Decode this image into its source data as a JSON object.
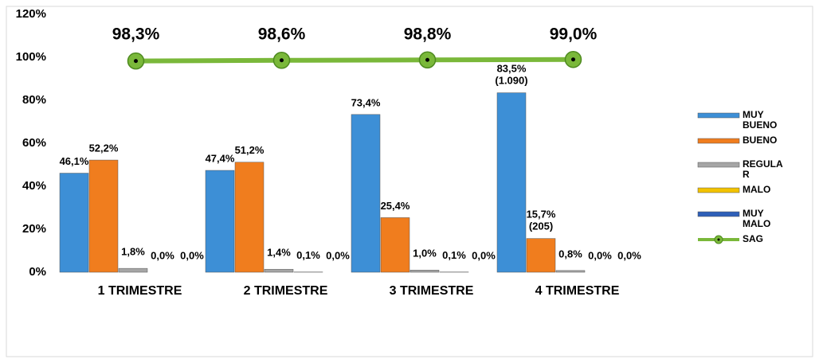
{
  "chart_data": {
    "type": "bar",
    "categories": [
      "1 TRIMESTRE",
      "2 TRIMESTRE",
      "3 TRIMESTRE",
      "4 TRIMESTRE"
    ],
    "series": [
      {
        "name": "MUY BUENO",
        "color": "#3d8fd6",
        "values": [
          46.1,
          47.4,
          73.4,
          83.5
        ],
        "value_labels": [
          "46,1%",
          "47,4%",
          "73,4%",
          "83,5%\n(1.090)"
        ]
      },
      {
        "name": "BUENO",
        "color": "#f07d1e",
        "values": [
          52.2,
          51.2,
          25.4,
          15.7
        ],
        "value_labels": [
          "52,2%",
          "51,2%",
          "25,4%",
          "15,7%\n(205)"
        ]
      },
      {
        "name": "REGULAR",
        "color": "#a6a6a6",
        "values": [
          1.8,
          1.4,
          1.0,
          0.8
        ],
        "value_labels": [
          "1,8%",
          "1,4%",
          "1,0%",
          "0,8%"
        ]
      },
      {
        "name": "MALO",
        "color": "#f2c200",
        "values": [
          0.0,
          0.1,
          0.1,
          0.0
        ],
        "value_labels": [
          "0,0%",
          "0,1%",
          "0,1%",
          "0,0%"
        ]
      },
      {
        "name": "MUY MALO",
        "color": "#2e5fb8",
        "values": [
          0.0,
          0.0,
          0.0,
          0.0
        ],
        "value_labels": [
          "0,0%",
          "0,0%",
          "0,0%",
          "0,0%"
        ]
      },
      {
        "name": "SAG",
        "color": "#7ab83a",
        "type": "line",
        "values": [
          98.3,
          98.6,
          98.8,
          99.0
        ],
        "value_labels": [
          "98,3%",
          "98,6%",
          "98,8%",
          "99,0%"
        ]
      }
    ],
    "ylim": [
      0,
      120
    ],
    "yticks": [
      {
        "value": 0,
        "label": "0%"
      },
      {
        "value": 20,
        "label": "20%"
      },
      {
        "value": 40,
        "label": "40%"
      },
      {
        "value": 60,
        "label": "60%"
      },
      {
        "value": 80,
        "label": "80%"
      },
      {
        "value": 100,
        "label": "100%"
      },
      {
        "value": 120,
        "label": "120%"
      }
    ],
    "legend": "right"
  }
}
